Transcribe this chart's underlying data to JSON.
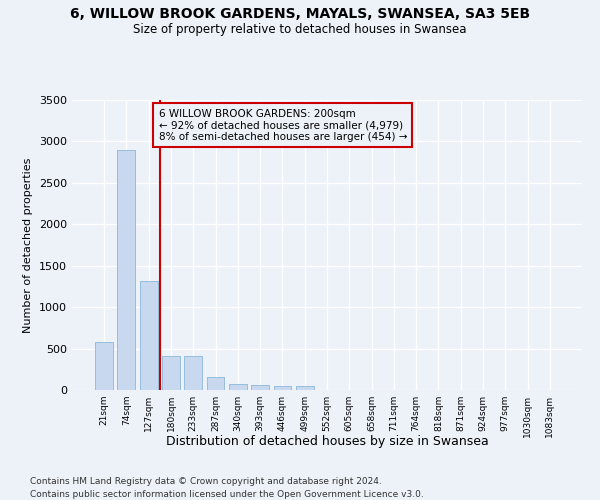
{
  "title": "6, WILLOW BROOK GARDENS, MAYALS, SWANSEA, SA3 5EB",
  "subtitle": "Size of property relative to detached houses in Swansea",
  "xlabel": "Distribution of detached houses by size in Swansea",
  "ylabel": "Number of detached properties",
  "categories": [
    "21sqm",
    "74sqm",
    "127sqm",
    "180sqm",
    "233sqm",
    "287sqm",
    "340sqm",
    "393sqm",
    "446sqm",
    "499sqm",
    "552sqm",
    "605sqm",
    "658sqm",
    "711sqm",
    "764sqm",
    "818sqm",
    "871sqm",
    "924sqm",
    "977sqm",
    "1030sqm",
    "1083sqm"
  ],
  "values": [
    580,
    2900,
    1310,
    415,
    415,
    155,
    75,
    55,
    45,
    45,
    0,
    0,
    0,
    0,
    0,
    0,
    0,
    0,
    0,
    0,
    0
  ],
  "bar_color": "#c8d8ee",
  "bar_edge_color": "#7aafd4",
  "vline_x": 2.5,
  "vline_color": "#cc0000",
  "annotation_text": "6 WILLOW BROOK GARDENS: 200sqm\n← 92% of detached houses are smaller (4,979)\n8% of semi-detached houses are larger (454) →",
  "ylim": [
    0,
    3500
  ],
  "yticks": [
    0,
    500,
    1000,
    1500,
    2000,
    2500,
    3000,
    3500
  ],
  "bg_color": "#edf2f9",
  "grid_color": "#ffffff",
  "footer_line1": "Contains HM Land Registry data © Crown copyright and database right 2024.",
  "footer_line2": "Contains public sector information licensed under the Open Government Licence v3.0."
}
